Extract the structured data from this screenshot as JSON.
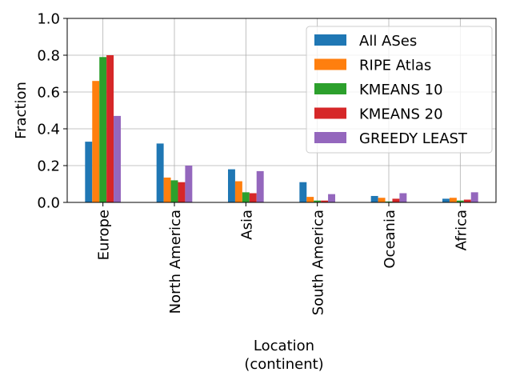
{
  "chart_data": {
    "type": "bar",
    "title": "",
    "xlabel_line1": "Location",
    "xlabel_line2": "(continent)",
    "ylabel": "Fraction",
    "ylim": [
      0,
      1.0
    ],
    "yticks": [
      "0.0",
      "0.2",
      "0.4",
      "0.6",
      "0.8",
      "1.0"
    ],
    "categories": [
      "Europe",
      "North America",
      "Asia",
      "South America",
      "Oceania",
      "Africa"
    ],
    "grid": true,
    "legend_position": "top-right",
    "series": [
      {
        "name": "All ASes",
        "color": "#1f77b4",
        "values": [
          0.33,
          0.32,
          0.18,
          0.11,
          0.035,
          0.02
        ]
      },
      {
        "name": "RIPE Atlas",
        "color": "#ff7f0e",
        "values": [
          0.66,
          0.135,
          0.115,
          0.03,
          0.025,
          0.025
        ]
      },
      {
        "name": "KMEANS 10",
        "color": "#2ca02c",
        "values": [
          0.79,
          0.12,
          0.055,
          0.01,
          0.005,
          0.01
        ]
      },
      {
        "name": "KMEANS 20",
        "color": "#d62728",
        "values": [
          0.8,
          0.11,
          0.05,
          0.01,
          0.02,
          0.015
        ]
      },
      {
        "name": "GREEDY LEAST",
        "color": "#9467bd",
        "values": [
          0.47,
          0.2,
          0.17,
          0.045,
          0.05,
          0.055
        ]
      }
    ]
  }
}
